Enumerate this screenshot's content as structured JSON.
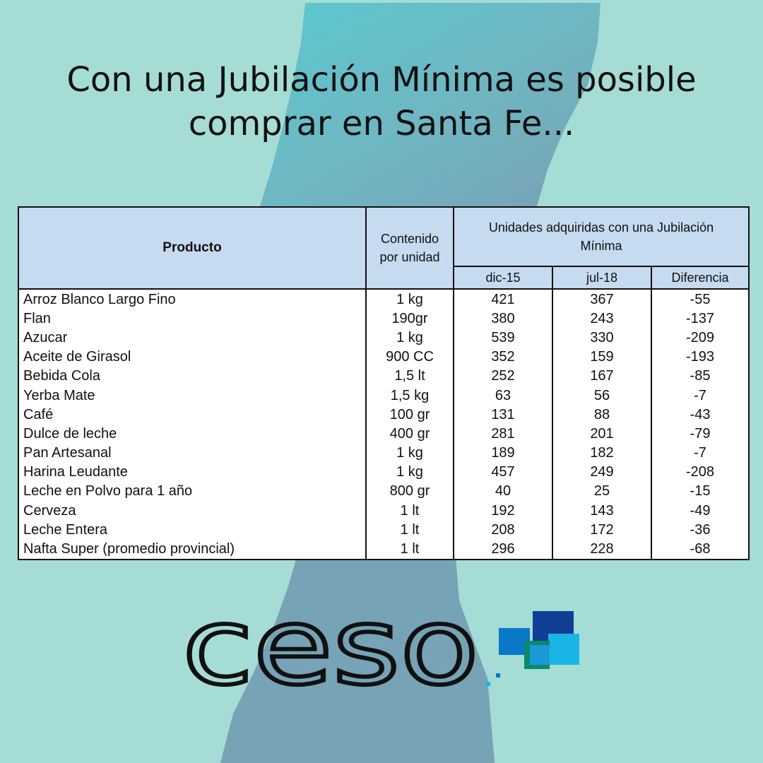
{
  "title": {
    "line1": "Con una Jubilación Mínima es posible",
    "line2": "comprar en Santa Fe..."
  },
  "table": {
    "headers": {
      "product": "Producto",
      "content_line1": "Contenido",
      "content_line2": "por unidad",
      "units_line1": "Unidades adquiridas con una Jubilación",
      "units_line2": "Mínima",
      "dic15": "dic-15",
      "jul18": "jul-18",
      "diff": "Diferencia"
    },
    "rows": [
      {
        "product": "Arroz Blanco Largo Fino",
        "content": "1 kg",
        "dic15": "421",
        "jul18": "367",
        "diff": "-55"
      },
      {
        "product": "Flan",
        "content": "190gr",
        "dic15": "380",
        "jul18": "243",
        "diff": "-137"
      },
      {
        "product": "Azucar",
        "content": "1 kg",
        "dic15": "539",
        "jul18": "330",
        "diff": "-209"
      },
      {
        "product": "Aceite de Girasol",
        "content": "900 CC",
        "dic15": "352",
        "jul18": "159",
        "diff": "-193"
      },
      {
        "product": "Bebida Cola",
        "content": "1,5 lt",
        "dic15": "252",
        "jul18": "167",
        "diff": "-85"
      },
      {
        "product": "Yerba Mate",
        "content": "1,5 kg",
        "dic15": "63",
        "jul18": "56",
        "diff": "-7"
      },
      {
        "product": "Café",
        "content": "100 gr",
        "dic15": "131",
        "jul18": "88",
        "diff": "-43"
      },
      {
        "product": "Dulce de leche",
        "content": "400 gr",
        "dic15": "281",
        "jul18": "201",
        "diff": "-79"
      },
      {
        "product": "Pan Artesanal",
        "content": "1 kg",
        "dic15": "189",
        "jul18": "182",
        "diff": "-7"
      },
      {
        "product": "Harina Leudante",
        "content": "1 kg",
        "dic15": "457",
        "jul18": "249",
        "diff": "-208"
      },
      {
        "product": "Leche en Polvo para 1 año",
        "content": "800 gr",
        "dic15": "40",
        "jul18": "25",
        "diff": "-15"
      },
      {
        "product": "Cerveza",
        "content": "1 lt",
        "dic15": "192",
        "jul18": "143",
        "diff": "-49"
      },
      {
        "product": "Leche Entera",
        "content": "1 lt",
        "dic15": "208",
        "jul18": "172",
        "diff": "-36"
      },
      {
        "product": "Nafta Super (promedio provincial)",
        "content": "1 lt",
        "dic15": "296",
        "jul18": "228",
        "diff": "-68"
      }
    ]
  },
  "logo": {
    "text": "ceso"
  },
  "colors": {
    "background": "#a6dcd6",
    "map_light": "#5fc4cc",
    "map_dark": "#78a6b6",
    "header_fill": "#c6daf0",
    "logo_blue_dark": "#123f96",
    "logo_blue": "#0a78c8",
    "logo_cyan": "#1ab4e6",
    "logo_green": "#0a8a6e"
  },
  "icons": {
    "background": "santa-fe-map-silhouette",
    "logo_mark": "ceso-squares-mark"
  }
}
